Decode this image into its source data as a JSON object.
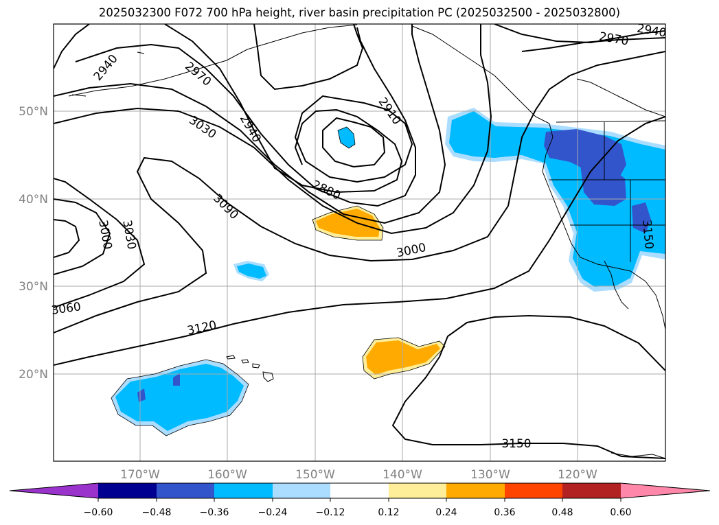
{
  "title": "2025032300 F072 700 hPa height, river basin precipitation PC (2025032500 - 2025032800)",
  "lat_labels": [
    "50°N",
    "40°N",
    "30°N",
    "20°N"
  ],
  "lon_labels": [
    "170°W",
    "160°W",
    "150°W",
    "140°W",
    "130°W",
    "120°W"
  ],
  "contour_labels": [
    "2940",
    "2970",
    "3030",
    "2940",
    "2910",
    "2880",
    "3090",
    "3000",
    "3030",
    "3000",
    "3060",
    "3120",
    "3150",
    "2970",
    "2940",
    "3150"
  ],
  "colorbar": {
    "ticks": [
      "−0.60",
      "−0.48",
      "−0.36",
      "−0.24",
      "−0.12",
      "0.12",
      "0.24",
      "0.36",
      "0.48",
      "0.60"
    ],
    "colors": [
      "#9933cc",
      "#000090",
      "#3355cc",
      "#00bbff",
      "#aaddff",
      "#ffffff",
      "#ffee99",
      "#ffaa00",
      "#ff4400",
      "#b22222",
      "#ff88aa"
    ]
  },
  "shading_colors": {
    "blue": "#00bbff",
    "lightblue": "#aaddff",
    "darkblue": "#3355cc",
    "orange": "#ffaa00",
    "yellow": "#ffee99"
  }
}
